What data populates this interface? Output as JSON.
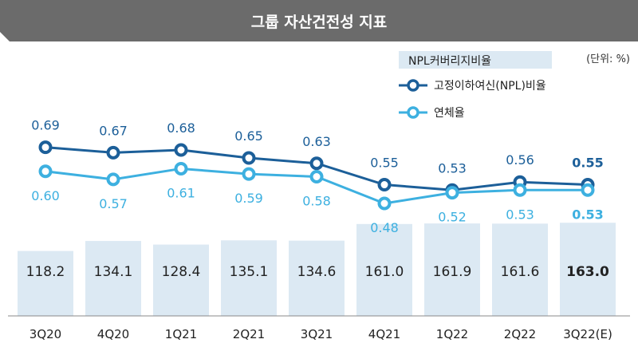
{
  "title": "그룹 자산건전성 지표",
  "unit": "(단위: %)",
  "colors": {
    "banner": "#6b6b6b",
    "bar": "#dce9f3",
    "npl": "#1c5f99",
    "delinquency": "#3db0e0"
  },
  "chart_data": {
    "type": "bar",
    "categories": [
      "3Q20",
      "4Q20",
      "1Q21",
      "2Q21",
      "3Q21",
      "4Q21",
      "1Q22",
      "2Q22",
      "3Q22(E)"
    ],
    "series": [
      {
        "name": "NPL커버리지비율",
        "type": "bar",
        "values": [
          118.2,
          134.1,
          128.4,
          135.1,
          134.6,
          161.0,
          161.9,
          161.6,
          163.0
        ],
        "labels": [
          "118.2",
          "134.1",
          "128.4",
          "135.1",
          "134.6",
          "161.0",
          "161.9",
          "161.6",
          "163.0"
        ]
      },
      {
        "name": "고정이하여신(NPL)비율",
        "type": "line",
        "values": [
          0.69,
          0.67,
          0.68,
          0.65,
          0.63,
          0.55,
          0.53,
          0.56,
          0.55
        ],
        "labels": [
          "0.69",
          "0.67",
          "0.68",
          "0.65",
          "0.63",
          "0.55",
          "0.53",
          "0.56",
          "0.55"
        ]
      },
      {
        "name": "연체율",
        "type": "line",
        "values": [
          0.6,
          0.57,
          0.61,
          0.59,
          0.58,
          0.48,
          0.52,
          0.53,
          0.53
        ],
        "labels": [
          "0.60",
          "0.57",
          "0.61",
          "0.59",
          "0.58",
          "0.48",
          "0.52",
          "0.53",
          "0.53"
        ]
      }
    ],
    "highlight_last": true,
    "legend_position": "top-right",
    "grid": false
  }
}
